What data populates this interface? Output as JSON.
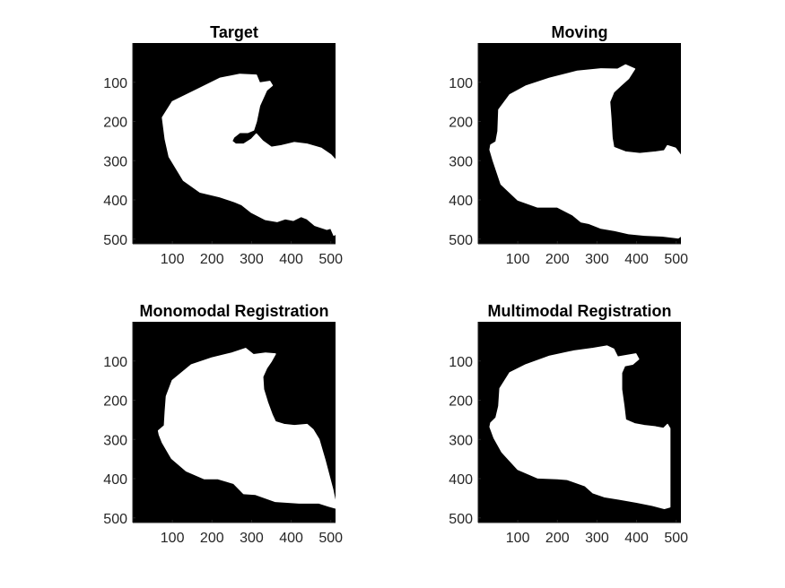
{
  "figure": {
    "background": "#ffffff",
    "image_background": "#000000",
    "mask_color": "#ffffff",
    "axis_color": "#262626"
  },
  "chart_data": [
    {
      "type": "heatmap",
      "title": "Target",
      "xlim": [
        0,
        512
      ],
      "ylim": [
        0,
        512
      ],
      "y_direction": "reversed",
      "x_ticks": [
        100,
        200,
        300,
        400,
        500
      ],
      "y_ticks": [
        100,
        200,
        300,
        400,
        500
      ],
      "content": "binary mask",
      "mask_outline": [
        [
          250,
          250
        ],
        [
          255,
          240
        ],
        [
          270,
          228
        ],
        [
          290,
          228
        ],
        [
          305,
          222
        ],
        [
          312,
          200
        ],
        [
          320,
          160
        ],
        [
          338,
          120
        ],
        [
          352,
          108
        ],
        [
          346,
          98
        ],
        [
          320,
          102
        ],
        [
          312,
          82
        ],
        [
          270,
          80
        ],
        [
          220,
          90
        ],
        [
          160,
          120
        ],
        [
          100,
          150
        ],
        [
          75,
          190
        ],
        [
          82,
          245
        ],
        [
          92,
          290
        ],
        [
          128,
          350
        ],
        [
          170,
          380
        ],
        [
          220,
          392
        ],
        [
          258,
          405
        ],
        [
          275,
          412
        ],
        [
          300,
          432
        ],
        [
          335,
          450
        ],
        [
          365,
          455
        ],
        [
          385,
          448
        ],
        [
          405,
          452
        ],
        [
          425,
          442
        ],
        [
          440,
          448
        ],
        [
          460,
          465
        ],
        [
          490,
          475
        ],
        [
          500,
          472
        ],
        [
          508,
          490
        ],
        [
          512,
          487
        ],
        [
          512,
          298
        ],
        [
          500,
          285
        ],
        [
          475,
          268
        ],
        [
          440,
          258
        ],
        [
          408,
          254
        ],
        [
          375,
          262
        ],
        [
          350,
          266
        ],
        [
          328,
          250
        ],
        [
          312,
          232
        ],
        [
          300,
          245
        ],
        [
          280,
          258
        ],
        [
          260,
          258
        ]
      ]
    },
    {
      "type": "heatmap",
      "title": "Moving",
      "xlim": [
        0,
        512
      ],
      "ylim": [
        0,
        512
      ],
      "y_direction": "reversed",
      "x_ticks": [
        100,
        200,
        300,
        400,
        500
      ],
      "y_ticks": [
        100,
        200,
        300,
        400,
        500
      ],
      "content": "binary mask",
      "mask_outline": [
        [
          32,
          260
        ],
        [
          45,
          252
        ],
        [
          50,
          225
        ],
        [
          52,
          170
        ],
        [
          80,
          132
        ],
        [
          120,
          110
        ],
        [
          180,
          90
        ],
        [
          250,
          72
        ],
        [
          310,
          66
        ],
        [
          352,
          67
        ],
        [
          372,
          56
        ],
        [
          395,
          66
        ],
        [
          380,
          90
        ],
        [
          360,
          108
        ],
        [
          342,
          125
        ],
        [
          332,
          150
        ],
        [
          335,
          192
        ],
        [
          338,
          242
        ],
        [
          342,
          266
        ],
        [
          372,
          278
        ],
        [
          408,
          282
        ],
        [
          448,
          278
        ],
        [
          470,
          275
        ],
        [
          478,
          262
        ],
        [
          498,
          268
        ],
        [
          512,
          287
        ],
        [
          512,
          492
        ],
        [
          505,
          497
        ],
        [
          465,
          492
        ],
        [
          420,
          490
        ],
        [
          380,
          486
        ],
        [
          345,
          478
        ],
        [
          310,
          472
        ],
        [
          280,
          460
        ],
        [
          260,
          456
        ],
        [
          238,
          438
        ],
        [
          200,
          418
        ],
        [
          150,
          418
        ],
        [
          100,
          400
        ],
        [
          58,
          360
        ],
        [
          38,
          300
        ],
        [
          30,
          272
        ]
      ]
    },
    {
      "type": "heatmap",
      "title": "Monomodal Registration",
      "xlim": [
        0,
        512
      ],
      "ylim": [
        0,
        512
      ],
      "y_direction": "reversed",
      "x_ticks": [
        100,
        200,
        300,
        400,
        500
      ],
      "y_ticks": [
        100,
        200,
        300,
        400,
        500
      ],
      "content": "binary mask",
      "mask_outline": [
        [
          65,
          278
        ],
        [
          80,
          265
        ],
        [
          82,
          230
        ],
        [
          85,
          190
        ],
        [
          100,
          150
        ],
        [
          148,
          110
        ],
        [
          200,
          92
        ],
        [
          250,
          80
        ],
        [
          285,
          68
        ],
        [
          305,
          84
        ],
        [
          335,
          80
        ],
        [
          360,
          82
        ],
        [
          350,
          100
        ],
        [
          338,
          118
        ],
        [
          328,
          140
        ],
        [
          330,
          172
        ],
        [
          340,
          205
        ],
        [
          352,
          238
        ],
        [
          360,
          255
        ],
        [
          382,
          262
        ],
        [
          408,
          265
        ],
        [
          440,
          262
        ],
        [
          455,
          275
        ],
        [
          470,
          300
        ],
        [
          485,
          352
        ],
        [
          505,
          428
        ],
        [
          512,
          462
        ],
        [
          512,
          475
        ],
        [
          495,
          470
        ],
        [
          470,
          462
        ],
        [
          420,
          462
        ],
        [
          360,
          458
        ],
        [
          310,
          440
        ],
        [
          280,
          438
        ],
        [
          255,
          412
        ],
        [
          215,
          400
        ],
        [
          180,
          400
        ],
        [
          135,
          380
        ],
        [
          98,
          348
        ],
        [
          75,
          308
        ],
        [
          67,
          288
        ]
      ]
    },
    {
      "type": "heatmap",
      "title": "Multimodal Registration",
      "xlim": [
        0,
        512
      ],
      "ylim": [
        0,
        512
      ],
      "y_direction": "reversed",
      "x_ticks": [
        100,
        200,
        300,
        400,
        500
      ],
      "y_ticks": [
        100,
        200,
        300,
        400,
        500
      ],
      "content": "binary mask",
      "mask_outline": [
        [
          32,
          258
        ],
        [
          45,
          245
        ],
        [
          52,
          215
        ],
        [
          55,
          170
        ],
        [
          80,
          130
        ],
        [
          120,
          110
        ],
        [
          180,
          88
        ],
        [
          240,
          75
        ],
        [
          290,
          68
        ],
        [
          325,
          62
        ],
        [
          342,
          70
        ],
        [
          352,
          90
        ],
        [
          380,
          85
        ],
        [
          398,
          82
        ],
        [
          405,
          95
        ],
        [
          390,
          108
        ],
        [
          370,
          112
        ],
        [
          362,
          130
        ],
        [
          362,
          172
        ],
        [
          368,
          215
        ],
        [
          372,
          250
        ],
        [
          395,
          260
        ],
        [
          420,
          265
        ],
        [
          448,
          268
        ],
        [
          468,
          272
        ],
        [
          478,
          262
        ],
        [
          484,
          272
        ],
        [
          484,
          472
        ],
        [
          470,
          476
        ],
        [
          440,
          468
        ],
        [
          400,
          460
        ],
        [
          355,
          452
        ],
        [
          318,
          446
        ],
        [
          290,
          436
        ],
        [
          270,
          418
        ],
        [
          225,
          402
        ],
        [
          200,
          400
        ],
        [
          150,
          398
        ],
        [
          100,
          376
        ],
        [
          60,
          332
        ],
        [
          40,
          296
        ],
        [
          30,
          268
        ]
      ]
    }
  ]
}
